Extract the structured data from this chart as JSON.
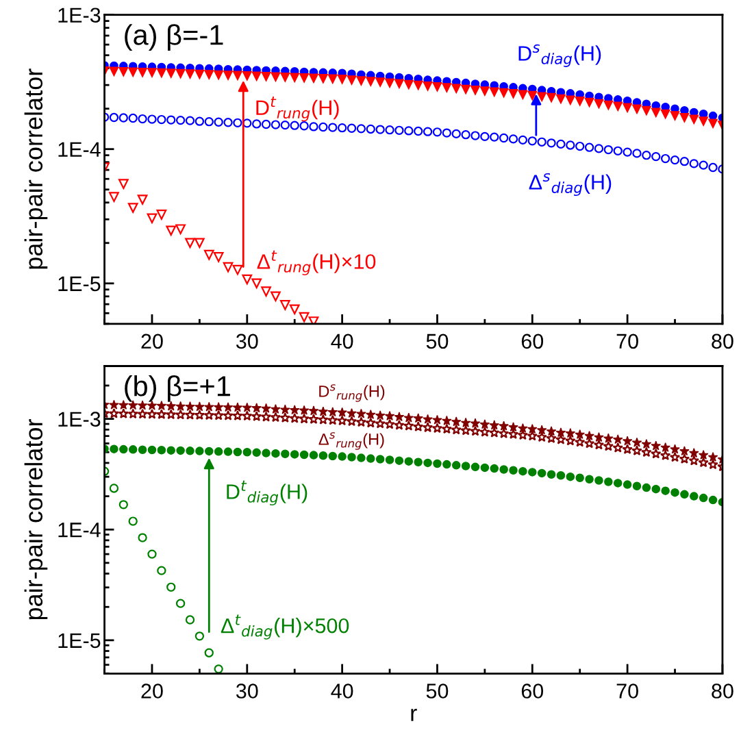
{
  "chart_data": [
    {
      "type": "scatter",
      "title": "(a) β=-1",
      "ylabel": "pair-pair correlator",
      "log": "y",
      "grid": false,
      "legend": false,
      "xlim": [
        15,
        80
      ],
      "xticks": [
        20,
        30,
        40,
        50,
        60,
        70,
        80
      ],
      "ylim": [
        5e-06,
        0.001
      ],
      "yticks": [
        {
          "value": 1e-05,
          "label": "1E-5"
        },
        {
          "value": 0.0001,
          "label": "1E-4"
        },
        {
          "value": 0.001,
          "label": "1E-3"
        }
      ],
      "series": [
        {
          "color": "#0000ff",
          "marker": "circle",
          "x": [
            15,
            16,
            17,
            18,
            19,
            20,
            21,
            22,
            23,
            24,
            25,
            26,
            27,
            28,
            29,
            30,
            31,
            32,
            33,
            34,
            35,
            36,
            37,
            38,
            39,
            40,
            41,
            42,
            43,
            44,
            45,
            46,
            47,
            48,
            49,
            50,
            51,
            52,
            53,
            54,
            55,
            56,
            57,
            58,
            59,
            60,
            61,
            62,
            63,
            64,
            65,
            66,
            67,
            68,
            69,
            70,
            71,
            72,
            73,
            74,
            75,
            76,
            77,
            78,
            79,
            80
          ],
          "values": [
            0.00042,
            0.000418,
            0.000416,
            0.000414,
            0.000412,
            0.00041,
            0.000408,
            0.000406,
            0.000404,
            0.000402,
            0.0004,
            0.000398,
            0.000396,
            0.000393,
            0.000391,
            0.000389,
            0.000387,
            0.000385,
            0.000383,
            0.000381,
            0.000379,
            0.000376,
            0.000374,
            0.000372,
            0.00037,
            0.000368,
            0.000364,
            0.000359,
            0.000355,
            0.00035,
            0.000346,
            0.000342,
            0.000337,
            0.000333,
            0.000328,
            0.000324,
            0.00032,
            0.000315,
            0.000311,
            0.000306,
            0.000302,
            0.000298,
            0.000293,
            0.000289,
            0.000284,
            0.00028,
            0.000275,
            0.00027,
            0.000265,
            0.00026,
            0.000255,
            0.000249,
            0.000244,
            0.000239,
            0.000234,
            0.000229,
            0.000223,
            0.000217,
            0.000211,
            0.000206,
            0.0002,
            0.000194,
            0.000188,
            0.000183,
            0.000177,
            0.000171
          ]
        },
        {
          "color": "#ff0000",
          "marker": "triangle",
          "x": [
            15,
            16,
            17,
            18,
            19,
            20,
            21,
            22,
            23,
            24,
            25,
            26,
            27,
            28,
            29,
            30,
            31,
            32,
            33,
            34,
            35,
            36,
            37,
            38,
            39,
            40,
            41,
            42,
            43,
            44,
            45,
            46,
            47,
            48,
            49,
            50,
            51,
            52,
            53,
            54,
            55,
            56,
            57,
            58,
            59,
            60,
            61,
            62,
            63,
            64,
            65,
            66,
            67,
            68,
            69,
            70,
            71,
            72,
            73,
            74,
            75,
            76,
            77,
            78,
            79,
            80
          ],
          "values": [
            0.00038,
            0.000378,
            0.000376,
            0.000374,
            0.000372,
            0.00037,
            0.000368,
            0.000366,
            0.000364,
            0.000362,
            0.00036,
            0.000358,
            0.000356,
            0.000354,
            0.000352,
            0.00035,
            0.000348,
            0.000346,
            0.000344,
            0.000342,
            0.00034,
            0.000338,
            0.000336,
            0.000334,
            0.000332,
            0.00033,
            0.000326,
            0.000322,
            0.000318,
            0.000314,
            0.00031,
            0.000306,
            0.000302,
            0.000298,
            0.000294,
            0.00029,
            0.000286,
            0.000282,
            0.000278,
            0.000274,
            0.00027,
            0.000266,
            0.000262,
            0.000258,
            0.000254,
            0.00025,
            0.000245,
            0.000241,
            0.000236,
            0.000231,
            0.000227,
            0.000222,
            0.000217,
            0.000212,
            0.000208,
            0.000203,
            0.000198,
            0.000193,
            0.000187,
            0.000182,
            0.000177,
            0.000171,
            0.000166,
            0.000161,
            0.000155,
            0.00015
          ]
        },
        {
          "color": "#0000ff",
          "marker": "circle",
          "x": [
            15,
            16,
            17,
            18,
            19,
            20,
            21,
            22,
            23,
            24,
            25,
            26,
            27,
            28,
            29,
            30,
            31,
            32,
            33,
            34,
            35,
            36,
            37,
            38,
            39,
            40,
            41,
            42,
            43,
            44,
            45,
            46,
            47,
            48,
            49,
            50,
            51,
            52,
            53,
            54,
            55,
            56,
            57,
            58,
            59,
            60,
            61,
            62,
            63,
            64,
            65,
            66,
            67,
            68,
            69,
            70,
            71,
            72,
            73,
            74,
            75,
            76,
            77,
            78,
            79,
            80
          ],
          "values": [
            0.000173,
            0.000172,
            0.000171,
            0.00017,
            0.000168,
            0.000167,
            0.000166,
            0.000165,
            0.000164,
            0.000163,
            0.000161,
            0.00016,
            0.000159,
            0.000158,
            0.000157,
            0.000156,
            0.000154,
            0.000153,
            0.000152,
            0.000151,
            0.00015,
            0.000149,
            0.000147,
            0.000146,
            0.000145,
            0.000144,
            0.000143,
            0.000142,
            0.000141,
            0.00014,
            0.000139,
            0.000138,
            0.000137,
            0.000136,
            0.000135,
            0.000134,
            0.000132,
            0.00013,
            0.000128,
            0.000126,
            0.000124,
            0.000123,
            0.000121,
            0.000119,
            0.000117,
            0.000115,
            0.000113,
            0.000111,
            0.000109,
            0.000107,
            0.000105,
            0.000103,
            0.000101,
            9.9e-05,
            9.7e-05,
            9.5e-05,
            9.3e-05,
            9e-05,
            8.8e-05,
            8.5e-05,
            8.3e-05,
            8.1e-05,
            7.8e-05,
            7.6e-05,
            7.3e-05,
            7.1e-05
          ]
        },
        {
          "color": "#ff0000",
          "marker": "triangle",
          "x": [
            15,
            16,
            17,
            18,
            19,
            20,
            21,
            22,
            23,
            24,
            25,
            26,
            27,
            28,
            29,
            30,
            31,
            32,
            33,
            34,
            35,
            36,
            37
          ],
          "values": [
            7.3e-05,
            4.4e-05,
            5.5e-05,
            3.65e-05,
            4.2e-05,
            3.05e-05,
            3.25e-05,
            2.47e-05,
            2.53e-05,
            2e-05,
            2e-05,
            1.63e-05,
            1.57e-05,
            1.32e-05,
            1.26e-05,
            1.07e-05,
            1e-05,
            8.7e-06,
            8e-06,
            6.9e-06,
            6.4e-06,
            5.6e-06,
            5.2e-06
          ]
        }
      ],
      "annotations": [
        {
          "text": "D$^{t}$$_{rung}$(H)",
          "x": 29.6,
          "y": 0.000324
        },
        {
          "text": "Δ$^{t}$$_{rung}$(H)×10",
          "x": 29.6,
          "y": 1.33e-05
        },
        {
          "text": "D$^{s}$$_{diag}$(H)",
          "x": 60.4,
          "y": 0.000258
        },
        {
          "text": "Δ$^{s}$$_{diag}$(H)",
          "x": 60.4,
          "y": 0.000127
        }
      ]
    },
    {
      "type": "scatter",
      "title": "(b) β=+1",
      "xlabel": "r",
      "ylabel": "pair-pair correlator",
      "log": "y",
      "grid": false,
      "legend": false,
      "xlim": [
        15,
        80
      ],
      "xticks": [
        20,
        30,
        40,
        50,
        60,
        70,
        80
      ],
      "ylim": [
        5e-06,
        0.003
      ],
      "yticks": [
        {
          "value": 1e-05,
          "label": "1E-5"
        },
        {
          "value": 0.0001,
          "label": "1E-4"
        },
        {
          "value": 0.001,
          "label": "1E-3"
        }
      ],
      "series": [
        {
          "color": "#800000",
          "marker": "star",
          "x": [
            15,
            16,
            17,
            18,
            19,
            20,
            21,
            22,
            23,
            24,
            25,
            26,
            27,
            28,
            29,
            30,
            31,
            32,
            33,
            34,
            35,
            36,
            37,
            38,
            39,
            40,
            41,
            42,
            43,
            44,
            45,
            46,
            47,
            48,
            49,
            50,
            51,
            52,
            53,
            54,
            55,
            56,
            57,
            58,
            59,
            60,
            61,
            62,
            63,
            64,
            65,
            66,
            67,
            68,
            69,
            70,
            71,
            72,
            73,
            74,
            75,
            76,
            77,
            78,
            79,
            80
          ],
          "values": [
            0.00134,
            0.001335,
            0.00133,
            0.001325,
            0.00132,
            0.001315,
            0.00131,
            0.0013,
            0.001295,
            0.00129,
            0.001285,
            0.00128,
            0.001275,
            0.00127,
            0.001265,
            0.00126,
            0.00125,
            0.00124,
            0.00122,
            0.00121,
            0.0012,
            0.00119,
            0.00118,
            0.00116,
            0.00115,
            0.00114,
            0.00112,
            0.00111,
            0.00109,
            0.00107,
            0.00106,
            0.00104,
            0.00102,
            0.00101,
            0.00099,
            0.000975,
            0.00096,
            0.00094,
            0.00092,
            0.00091,
            0.00089,
            0.000875,
            0.00086,
            0.00084,
            0.00082,
            0.000807,
            0.00079,
            0.00077,
            0.00075,
            0.00074,
            0.00072,
            0.0007,
            0.00068,
            0.000665,
            0.00065,
            0.00063,
            0.00061,
            0.00059,
            0.00057,
            0.00055,
            0.00053,
            0.00051,
            0.00049,
            0.00047,
            0.00045,
            0.00043
          ]
        },
        {
          "color": "#800000",
          "marker": "star",
          "x": [
            15,
            16,
            17,
            18,
            19,
            20,
            21,
            22,
            23,
            24,
            25,
            26,
            27,
            28,
            29,
            30,
            31,
            32,
            33,
            34,
            35,
            36,
            37,
            38,
            39,
            40,
            41,
            42,
            43,
            44,
            45,
            46,
            47,
            48,
            49,
            50,
            51,
            52,
            53,
            54,
            55,
            56,
            57,
            58,
            59,
            60,
            61,
            62,
            63,
            64,
            65,
            66,
            67,
            68,
            69,
            70,
            71,
            72,
            73,
            74,
            75,
            76,
            77,
            78,
            79,
            80
          ],
          "values": [
            0.00112,
            0.001116,
            0.001112,
            0.001108,
            0.001104,
            0.0011,
            0.001096,
            0.001092,
            0.001088,
            0.001084,
            0.00108,
            0.001076,
            0.001072,
            0.001068,
            0.001064,
            0.00106,
            0.00105,
            0.00104,
            0.00103,
            0.00102,
            0.00101,
            0.001,
            0.00099,
            0.00098,
            0.00097,
            0.00096,
            0.000946,
            0.000932,
            0.000918,
            0.000904,
            0.00089,
            0.000876,
            0.000862,
            0.000848,
            0.000834,
            0.00082,
            0.000808,
            0.000796,
            0.000784,
            0.000772,
            0.00076,
            0.000748,
            0.000736,
            0.000724,
            0.000712,
            0.0007,
            0.000683,
            0.000666,
            0.000649,
            0.000632,
            0.000615,
            0.000598,
            0.000581,
            0.000564,
            0.000547,
            0.00053,
            0.000514,
            0.000498,
            0.000482,
            0.000466,
            0.00045,
            0.000434,
            0.000418,
            0.000402,
            0.000386,
            0.00037
          ]
        },
        {
          "color": "#008000",
          "marker": "circle",
          "x": [
            15,
            16,
            17,
            18,
            19,
            20,
            21,
            22,
            23,
            24,
            25,
            26,
            27,
            28,
            29,
            30,
            31,
            32,
            33,
            34,
            35,
            36,
            37,
            38,
            39,
            40,
            41,
            42,
            43,
            44,
            45,
            46,
            47,
            48,
            49,
            50,
            51,
            52,
            53,
            54,
            55,
            56,
            57,
            58,
            59,
            60,
            61,
            62,
            63,
            64,
            65,
            66,
            67,
            68,
            69,
            70,
            71,
            72,
            73,
            74,
            75,
            76,
            77,
            78,
            79,
            80
          ],
          "values": [
            0.000536,
            0.000534,
            0.000531,
            0.000529,
            0.000526,
            0.000524,
            0.000522,
            0.000519,
            0.000517,
            0.000514,
            0.000512,
            0.00051,
            0.000507,
            0.000505,
            0.000502,
            0.0005,
            0.000496,
            0.000491,
            0.000487,
            0.000483,
            0.000478,
            0.000474,
            0.00047,
            0.000466,
            0.000461,
            0.000457,
            0.000451,
            0.000444,
            0.000438,
            0.000432,
            0.000426,
            0.000419,
            0.000413,
            0.000407,
            0.0004,
            0.000394,
            0.000388,
            0.000381,
            0.000375,
            0.000368,
            0.000362,
            0.000356,
            0.000349,
            0.000343,
            0.000336,
            0.00033,
            0.000323,
            0.000315,
            0.000308,
            0.0003,
            0.000293,
            0.000285,
            0.000278,
            0.00027,
            0.000263,
            0.000255,
            0.000247,
            0.000239,
            0.000232,
            0.000224,
            0.000216,
            0.000208,
            0.0002,
            0.000193,
            0.000185,
            0.000177
          ]
        },
        {
          "color": "#008000",
          "marker": "circle",
          "x": [
            15,
            16,
            17,
            18,
            19,
            20,
            21,
            22,
            23,
            24,
            25,
            26,
            27
          ],
          "values": [
            0.000336,
            0.000236,
            0.000168,
            0.000119,
            8.45e-05,
            6e-05,
            4.26e-05,
            3.02e-05,
            2.15e-05,
            1.53e-05,
            1.09e-05,
            7.7e-06,
            5.5e-06
          ]
        }
      ],
      "annotations": [
        "D$^{s}$$_{rung}$(H)",
        "Δ$^{s}$$_{rung}$(H)",
        {
          "text": "D$^{t}$$_{diag}$(H)",
          "x": 26,
          "y": 0.00051
        },
        {
          "text": "Δ$^{t}$$_{diag}$(H)×500",
          "x": 26,
          "y": 7.7e-06
        }
      ]
    }
  ]
}
